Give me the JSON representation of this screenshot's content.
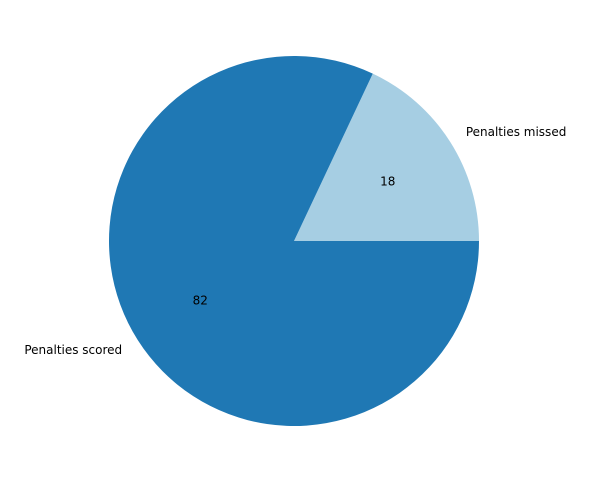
{
  "chart_data": {
    "type": "pie",
    "slices": [
      {
        "label": "Penalties missed",
        "value": 18,
        "value_label": "18",
        "color": "#a6cee3"
      },
      {
        "label": "Penalties scored",
        "value": 82,
        "value_label": "82",
        "color": "#1f78b4"
      }
    ],
    "start_angle_deg": 0,
    "direction": "counterclockwise"
  }
}
